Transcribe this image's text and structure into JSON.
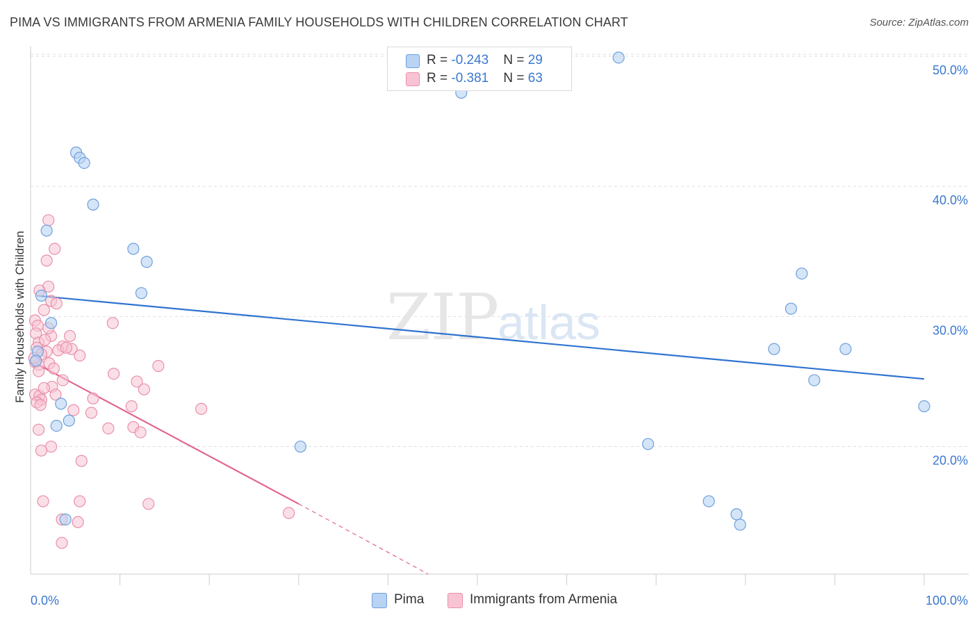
{
  "title": "PIMA VS IMMIGRANTS FROM ARMENIA FAMILY HOUSEHOLDS WITH CHILDREN CORRELATION CHART",
  "source": "Source: ZipAtlas.com",
  "watermark": {
    "zip": "ZIP",
    "atlas": "atlas"
  },
  "legend": {
    "series1": {
      "r_label": "R = ",
      "r_value": "-0.243",
      "n_label": "N = ",
      "n_value": "29"
    },
    "series2": {
      "r_label": "R = ",
      "r_value": "-0.381",
      "n_label": "N = ",
      "n_value": "63"
    }
  },
  "bottom_legend": {
    "series1": "Pima",
    "series2": "Immigrants from Armenia"
  },
  "colors": {
    "pima_fill": "#b8d3f3",
    "pima_stroke": "#6f9fdc",
    "pima_line": "#2f73d0",
    "armenia_fill": "#f8c4d4",
    "armenia_stroke": "#e98fab",
    "armenia_line": "#e0668f",
    "grid": "#dddddd",
    "tick_text": "#3b78cf"
  },
  "chart_data": {
    "type": "scatter",
    "title": "PIMA VS IMMIGRANTS FROM ARMENIA FAMILY HOUSEHOLDS WITH CHILDREN CORRELATION CHART",
    "xlabel": "",
    "ylabel": "Family Households with Children",
    "xlim": [
      0,
      100
    ],
    "ylim": [
      10.2,
      50.8
    ],
    "x_tick_labels": [
      {
        "value": 0,
        "label": "0.0%"
      },
      {
        "value": 100,
        "label": "100.0%"
      }
    ],
    "y_ticks": [
      {
        "value": 20,
        "label": "20.0%"
      },
      {
        "value": 30,
        "label": "30.0%"
      },
      {
        "value": 40,
        "label": "40.0%"
      },
      {
        "value": 50,
        "label": "50.0%"
      }
    ],
    "x_minor_ticks": [
      10,
      20,
      30,
      40,
      50,
      60,
      70,
      80,
      90,
      100
    ],
    "series": [
      {
        "name": "Pima",
        "r": -0.243,
        "n": 29,
        "points": [
          [
            5.1,
            42.6
          ],
          [
            5.5,
            42.2
          ],
          [
            6.0,
            41.8
          ],
          [
            7.0,
            38.6
          ],
          [
            1.8,
            36.6
          ],
          [
            11.5,
            35.2
          ],
          [
            13.0,
            34.2
          ],
          [
            12.4,
            31.8
          ],
          [
            1.2,
            31.6
          ],
          [
            2.3,
            29.5
          ],
          [
            0.8,
            27.3
          ],
          [
            0.6,
            26.6
          ],
          [
            3.4,
            23.3
          ],
          [
            4.3,
            22.0
          ],
          [
            2.9,
            21.6
          ],
          [
            30.2,
            20.0
          ],
          [
            3.9,
            14.4
          ],
          [
            48.2,
            47.2
          ],
          [
            65.8,
            49.9
          ],
          [
            86.3,
            33.3
          ],
          [
            85.1,
            30.6
          ],
          [
            83.2,
            27.5
          ],
          [
            91.2,
            27.5
          ],
          [
            87.7,
            25.1
          ],
          [
            69.1,
            20.2
          ],
          [
            100.0,
            23.1
          ],
          [
            75.9,
            15.8
          ],
          [
            79.0,
            14.8
          ],
          [
            79.4,
            14.0
          ]
        ],
        "trend": {
          "x_start": 0.7,
          "y_start": 31.6,
          "x_end": 100.0,
          "y_end": 25.2
        }
      },
      {
        "name": "Immigrants from Armenia",
        "r": -0.381,
        "n": 63,
        "points": [
          [
            2.0,
            37.4
          ],
          [
            2.7,
            35.2
          ],
          [
            1.8,
            34.3
          ],
          [
            2.0,
            32.3
          ],
          [
            1.0,
            32.0
          ],
          [
            2.3,
            31.2
          ],
          [
            2.9,
            31.0
          ],
          [
            1.5,
            30.5
          ],
          [
            0.5,
            29.7
          ],
          [
            0.8,
            29.3
          ],
          [
            9.2,
            29.5
          ],
          [
            0.6,
            28.7
          ],
          [
            0.9,
            28.0
          ],
          [
            1.8,
            27.3
          ],
          [
            2.3,
            28.5
          ],
          [
            4.4,
            28.5
          ],
          [
            3.6,
            27.7
          ],
          [
            4.6,
            27.5
          ],
          [
            0.7,
            27.6
          ],
          [
            1.2,
            27.1
          ],
          [
            3.1,
            27.4
          ],
          [
            5.5,
            27.0
          ],
          [
            0.5,
            26.5
          ],
          [
            0.9,
            26.3
          ],
          [
            2.1,
            26.4
          ],
          [
            2.6,
            26.0
          ],
          [
            14.3,
            26.2
          ],
          [
            0.9,
            25.8
          ],
          [
            9.3,
            25.6
          ],
          [
            11.9,
            25.0
          ],
          [
            2.4,
            24.6
          ],
          [
            12.7,
            24.4
          ],
          [
            0.5,
            24.0
          ],
          [
            1.0,
            23.9
          ],
          [
            2.8,
            24.0
          ],
          [
            7.0,
            23.7
          ],
          [
            1.2,
            23.6
          ],
          [
            0.7,
            23.4
          ],
          [
            1.1,
            23.2
          ],
          [
            11.3,
            23.1
          ],
          [
            19.1,
            22.9
          ],
          [
            4.8,
            22.8
          ],
          [
            8.7,
            21.4
          ],
          [
            11.5,
            21.5
          ],
          [
            0.9,
            21.3
          ],
          [
            12.3,
            21.1
          ],
          [
            2.3,
            20.0
          ],
          [
            1.2,
            19.7
          ],
          [
            5.7,
            18.9
          ],
          [
            1.4,
            15.8
          ],
          [
            5.5,
            15.8
          ],
          [
            13.2,
            15.6
          ],
          [
            28.9,
            14.9
          ],
          [
            3.5,
            14.4
          ],
          [
            5.3,
            14.2
          ],
          [
            3.5,
            12.6
          ],
          [
            2.0,
            29.1
          ],
          [
            1.6,
            28.2
          ],
          [
            0.4,
            26.8
          ],
          [
            3.6,
            25.1
          ],
          [
            6.8,
            22.6
          ],
          [
            1.5,
            24.5
          ],
          [
            4.0,
            27.6
          ]
        ],
        "trend": {
          "x_start": 0.3,
          "y_start": 26.5,
          "x_end": 30.0,
          "y_end": 15.6,
          "dash_x_end": 44.5,
          "dash_y_end": 10.2
        }
      }
    ]
  }
}
